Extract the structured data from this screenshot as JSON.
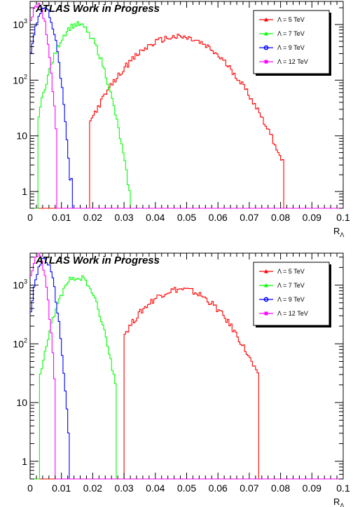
{
  "colors": {
    "red": "#ff0000",
    "green": "#00ff00",
    "blue": "#0000ff",
    "magenta": "#ff00ff"
  },
  "chart_data": [
    {
      "type": "histogram",
      "label": "ATLAS Work in Progress",
      "xlabel": "R",
      "xlabel_sub": "Λ",
      "xlim": [
        0,
        0.1
      ],
      "ylim": [
        0.5,
        2600
      ],
      "yscale": "log",
      "xticks": [
        "0",
        "0.01",
        "0.02",
        "0.03",
        "0.04",
        "0.05",
        "0.06",
        "0.07",
        "0.08",
        "0.09",
        "0.1"
      ],
      "yticks": [
        {
          "base": "1",
          "exp": ""
        },
        {
          "base": "10",
          "exp": ""
        },
        {
          "base": "10",
          "exp": "2"
        },
        {
          "base": "10",
          "exp": "3"
        }
      ],
      "legend_position": "top-right",
      "series": [
        {
          "name": "Λ = 5 TeV",
          "color": "red",
          "marker": "triangle",
          "peak_x": 0.047,
          "peak_y": 600,
          "sigma": 0.0105,
          "start": 0.019,
          "end": 0.081
        },
        {
          "name": "Λ = 7 TeV",
          "color": "green",
          "marker": "triangle",
          "peak_x": 0.015,
          "peak_y": 1000,
          "sigma": 0.0045,
          "start": 0.0025,
          "end": 0.032
        },
        {
          "name": "Λ = 9 TeV",
          "color": "blue",
          "marker": "circle",
          "peak_x": 0.0045,
          "peak_y": 2000,
          "sigma": 0.0022,
          "start": 0.0,
          "end": 0.0135
        },
        {
          "name": "Λ = 12 TeV",
          "color": "magenta",
          "marker": "square",
          "peak_x": 0.0025,
          "peak_y": 2300,
          "sigma": 0.0018,
          "start": 0.0,
          "end": 0.0085
        }
      ]
    },
    {
      "type": "histogram",
      "label": "ATLAS Work in Progress",
      "xlabel": "R",
      "xlabel_sub": "Λ",
      "xlim": [
        0,
        0.1
      ],
      "ylim": [
        0.5,
        3500
      ],
      "yscale": "log",
      "xticks": [
        "0",
        "0.01",
        "0.02",
        "0.03",
        "0.04",
        "0.05",
        "0.06",
        "0.07",
        "0.08",
        "0.09",
        "0.1"
      ],
      "yticks": [
        {
          "base": "1",
          "exp": ""
        },
        {
          "base": "10",
          "exp": ""
        },
        {
          "base": "10",
          "exp": "2"
        },
        {
          "base": "10",
          "exp": "3"
        }
      ],
      "legend_position": "top-right",
      "series": [
        {
          "name": "Λ = 5 TeV",
          "color": "red",
          "marker": "triangle",
          "peak_x": 0.048,
          "peak_y": 850,
          "sigma": 0.0095,
          "start": 0.03,
          "end": 0.073
        },
        {
          "name": "Λ = 7 TeV",
          "color": "green",
          "marker": "triangle",
          "peak_x": 0.015,
          "peak_y": 1400,
          "sigma": 0.0042,
          "start": 0.003,
          "end": 0.0275
        },
        {
          "name": "Λ = 9 TeV",
          "color": "blue",
          "marker": "circle",
          "peak_x": 0.0045,
          "peak_y": 2800,
          "sigma": 0.0021,
          "start": 0.0,
          "end": 0.0125
        },
        {
          "name": "Λ = 12 TeV",
          "color": "magenta",
          "marker": "square",
          "peak_x": 0.0025,
          "peak_y": 3200,
          "sigma": 0.0017,
          "start": 0.0,
          "end": 0.008
        }
      ]
    }
  ]
}
